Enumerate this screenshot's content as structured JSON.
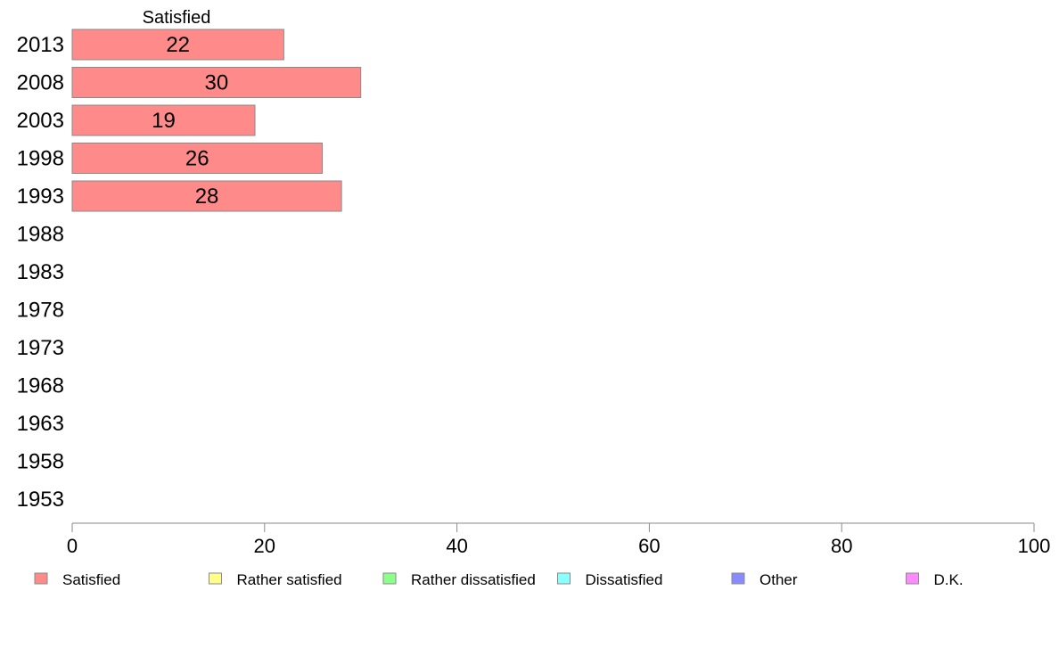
{
  "chart_data": {
    "type": "bar",
    "orientation": "horizontal",
    "stacked": true,
    "categories": [
      "2013",
      "2008",
      "2003",
      "1998",
      "1993",
      "1988",
      "1983",
      "1978",
      "1973",
      "1968",
      "1963",
      "1958",
      "1953"
    ],
    "series": [
      {
        "name": "Satisfied",
        "color": "#ff8a8a",
        "values": [
          22,
          30,
          19,
          26,
          28,
          null,
          null,
          null,
          null,
          null,
          null,
          null,
          null
        ]
      },
      {
        "name": "Rather satisfied",
        "color": "#ffff8a",
        "values": [
          null,
          null,
          null,
          null,
          null,
          null,
          null,
          null,
          null,
          null,
          null,
          null,
          null
        ]
      },
      {
        "name": "Rather dissatisfied",
        "color": "#8aff8a",
        "values": [
          null,
          null,
          null,
          null,
          null,
          null,
          null,
          null,
          null,
          null,
          null,
          null,
          null
        ]
      },
      {
        "name": "Dissatisfied",
        "color": "#8affff",
        "values": [
          null,
          null,
          null,
          null,
          null,
          null,
          null,
          null,
          null,
          null,
          null,
          null,
          null
        ]
      },
      {
        "name": "Other",
        "color": "#8a8aff",
        "values": [
          null,
          null,
          null,
          null,
          null,
          null,
          null,
          null,
          null,
          null,
          null,
          null,
          null
        ]
      },
      {
        "name": "D.K.",
        "color": "#ff8aff",
        "values": [
          null,
          null,
          null,
          null,
          null,
          null,
          null,
          null,
          null,
          null,
          null,
          null,
          null
        ]
      }
    ],
    "column_header": "Satisfied",
    "xlim": [
      0,
      100
    ],
    "xticks": [
      "0",
      "20",
      "40",
      "60",
      "80",
      "100"
    ],
    "grid": false,
    "legend_position": "bottom",
    "title": "",
    "xlabel": "",
    "ylabel": ""
  }
}
